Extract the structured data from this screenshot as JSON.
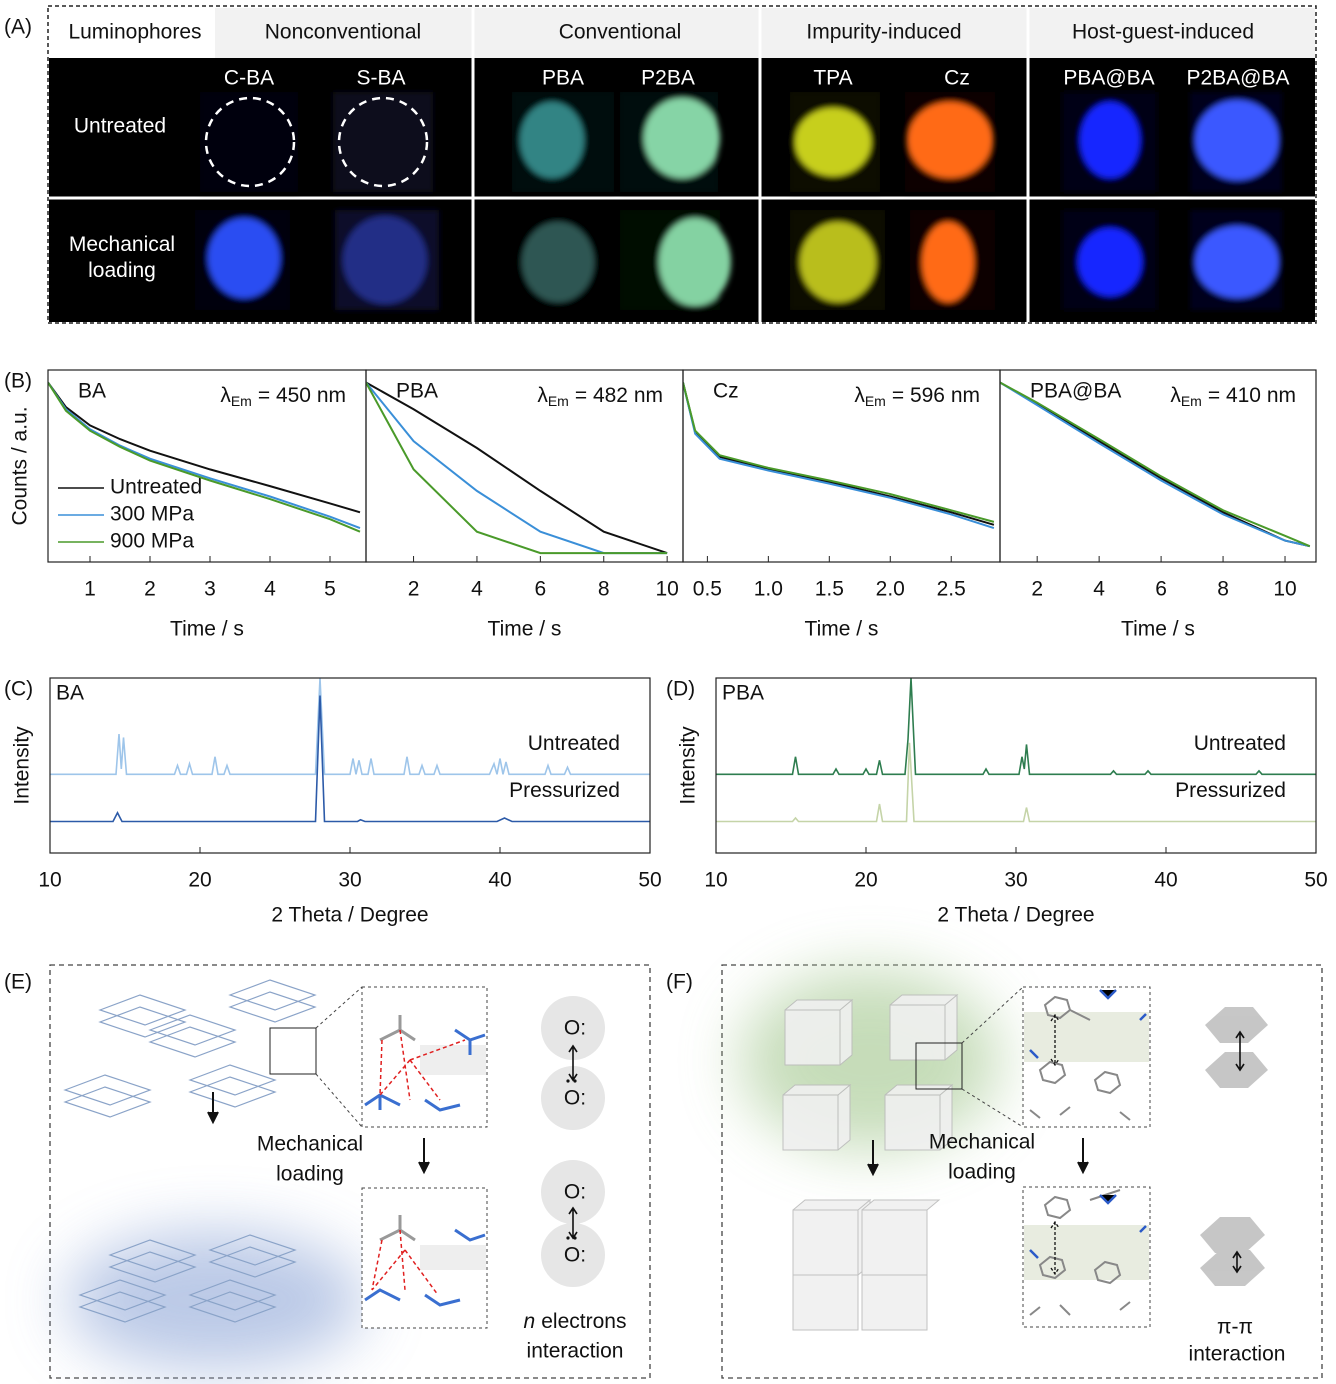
{
  "panel_labels": [
    "(A)",
    "(B)",
    "(C)",
    "(D)",
    "(E)",
    "(F)"
  ],
  "table": {
    "header": [
      "Luminophores",
      "Nonconventional",
      "Conventional",
      "Impurity-induced",
      "Host-guest-induced"
    ],
    "samples": [
      "C-BA",
      "S-BA",
      "PBA",
      "P2BA",
      "TPA",
      "Cz",
      "PBA@BA",
      "P2BA@BA"
    ],
    "rows": [
      "Untreated",
      "Mechanical loading"
    ]
  },
  "chart_data": [
    {
      "type": "line",
      "title": "BA",
      "annotation": {
        "symbol": "λ",
        "subscript": "Em",
        "text": "= 450 nm"
      },
      "xlabel": "Time / s",
      "ylabel": "Counts / a.u.",
      "yscale": "log",
      "legend": "lower left",
      "xlim": [
        0.3,
        5.6
      ],
      "xticks": [
        1,
        2,
        3,
        4,
        5
      ],
      "ylim": [
        3,
        1500
      ],
      "x": [
        0.3,
        0.6,
        1,
        1.5,
        2,
        3,
        4,
        5,
        5.5
      ],
      "series": [
        {
          "name": "Untreated",
          "color": "#111111",
          "values": [
            1000,
            450,
            250,
            160,
            110,
            60,
            35,
            20,
            15
          ]
        },
        {
          "name": "300 MPa",
          "color": "#3a8fd8",
          "values": [
            1000,
            420,
            220,
            130,
            85,
            45,
            25,
            13,
            9
          ]
        },
        {
          "name": "900 MPa",
          "color": "#4a9a2a",
          "values": [
            1000,
            400,
            210,
            125,
            80,
            42,
            23,
            12,
            8
          ]
        }
      ]
    },
    {
      "type": "line",
      "title": "PBA",
      "annotation": {
        "symbol": "λ",
        "subscript": "Em",
        "text": "= 482 nm"
      },
      "xlabel": "Time / s",
      "yscale": "log",
      "xlim": [
        0.5,
        10.5
      ],
      "xticks": [
        2,
        4,
        6,
        8,
        10
      ],
      "ylim": [
        3,
        1500
      ],
      "x": [
        0.5,
        2,
        4,
        6,
        8,
        10
      ],
      "series": [
        {
          "name": "Untreated",
          "color": "#111111",
          "values": [
            1000,
            420,
            120,
            30,
            8,
            4
          ]
        },
        {
          "name": "300 MPa",
          "color": "#3a8fd8",
          "values": [
            1000,
            150,
            30,
            8,
            4,
            4
          ]
        },
        {
          "name": "900 MPa",
          "color": "#4a9a2a",
          "values": [
            1000,
            60,
            8,
            4,
            4,
            4
          ]
        }
      ]
    },
    {
      "type": "line",
      "title": "Cz",
      "annotation": {
        "symbol": "λ",
        "subscript": "Em",
        "text": "= 596 nm"
      },
      "xlabel": "Time / s",
      "yscale": "log",
      "xlim": [
        0.3,
        2.9
      ],
      "xticks": [
        0.5,
        {
          "value": 1,
          "label": "1.0"
        },
        1.5,
        {
          "value": 2,
          "label": "2.0"
        },
        2.5
      ],
      "ylim": [
        3,
        1500
      ],
      "x": [
        0.3,
        0.4,
        0.6,
        1,
        1.5,
        2,
        2.5,
        2.85
      ],
      "series": [
        {
          "name": "Untreated",
          "color": "#111111",
          "values": [
            1000,
            200,
            90,
            60,
            40,
            25,
            15,
            10
          ]
        },
        {
          "name": "300 MPa",
          "color": "#3a8fd8",
          "values": [
            1000,
            190,
            85,
            58,
            38,
            24,
            14,
            9
          ]
        },
        {
          "name": "900 MPa",
          "color": "#4a9a2a",
          "values": [
            1000,
            210,
            95,
            63,
            42,
            27,
            16,
            11
          ]
        }
      ]
    },
    {
      "type": "line",
      "title": "PBA@BA",
      "annotation": {
        "symbol": "λ",
        "subscript": "Em",
        "text": "= 410 nm"
      },
      "xlabel": "Time / s",
      "yscale": "log",
      "xlim": [
        0.8,
        11
      ],
      "xticks": [
        2,
        4,
        6,
        8,
        10
      ],
      "ylim": [
        3,
        1500
      ],
      "x": [
        0.8,
        2,
        4,
        6,
        8,
        10,
        10.8
      ],
      "series": [
        {
          "name": "Untreated",
          "color": "#111111",
          "values": [
            1000,
            500,
            150,
            45,
            15,
            6,
            5
          ]
        },
        {
          "name": "300 MPa",
          "color": "#3a8fd8",
          "values": [
            1000,
            480,
            140,
            42,
            14,
            6,
            5
          ]
        },
        {
          "name": "900 MPa",
          "color": "#4a9a2a",
          "values": [
            1000,
            520,
            160,
            48,
            16,
            7,
            5
          ]
        }
      ]
    },
    {
      "type": "line",
      "title": "BA",
      "xlabel": "2 Theta / Degree",
      "ylabel": "Intensity",
      "legend": "inline",
      "xlim": [
        10,
        50
      ],
      "xticks": [
        10,
        20,
        30,
        40,
        50
      ],
      "ylim": [
        0,
        100
      ],
      "series": [
        {
          "name": "Untreated",
          "color": "#9ec5ea",
          "x": [
            10,
            14.4,
            14.6,
            14.75,
            14.9,
            15.1,
            18.3,
            18.5,
            18.7,
            19.1,
            19.3,
            19.5,
            20.8,
            21,
            21.2,
            21.6,
            21.8,
            22,
            27.7,
            28,
            28.3,
            30,
            30.2,
            30.4,
            30.6,
            30.8,
            31.2,
            31.4,
            31.6,
            33.6,
            33.8,
            34,
            34.6,
            34.8,
            35,
            35.6,
            35.8,
            36,
            39.3,
            39.6,
            39.8,
            40,
            40.2,
            40.4,
            40.6,
            43,
            43.2,
            43.4,
            44.3,
            44.5,
            44.7,
            50
          ],
          "values": [
            45,
            45,
            68,
            48,
            66,
            45,
            45,
            50,
            45,
            45,
            51,
            45,
            45,
            55,
            45,
            45,
            50,
            45,
            45,
            100,
            45,
            45,
            54,
            45,
            53,
            45,
            45,
            54,
            45,
            45,
            55,
            45,
            45,
            50,
            45,
            45,
            50,
            45,
            45,
            51,
            45,
            54,
            45,
            52,
            45,
            45,
            50,
            45,
            45,
            49,
            45,
            45
          ]
        },
        {
          "name": "Pressurized",
          "color": "#2c5aa8",
          "x": [
            10,
            14.2,
            14.5,
            14.8,
            27.7,
            28,
            28.3,
            30.5,
            30.7,
            31,
            39.8,
            40.3,
            40.8,
            50
          ],
          "values": [
            18,
            18,
            23,
            18,
            18,
            90,
            18,
            18,
            19,
            18,
            18,
            20,
            18,
            18
          ]
        }
      ]
    },
    {
      "type": "line",
      "title": "PBA",
      "xlabel": "2 Theta / Degree",
      "ylabel": "Intensity",
      "legend": "inline",
      "xlim": [
        10,
        50
      ],
      "xticks": [
        10,
        20,
        30,
        40,
        50
      ],
      "ylim": [
        0,
        100
      ],
      "series": [
        {
          "name": "Untreated",
          "color": "#2e7d4f",
          "x": [
            10,
            15.1,
            15.3,
            15.5,
            17.8,
            18,
            18.2,
            19.8,
            20,
            20.2,
            20.7,
            20.9,
            21.1,
            22.6,
            22.8,
            23,
            23.3,
            27.8,
            28,
            28.2,
            30.2,
            30.4,
            30.55,
            30.7,
            30.9,
            36.3,
            36.5,
            36.7,
            38.6,
            38.8,
            39,
            46,
            46.2,
            46.4,
            50
          ],
          "values": [
            45,
            45,
            55,
            45,
            45,
            48,
            45,
            45,
            48,
            45,
            45,
            53,
            45,
            45,
            65,
            100,
            45,
            45,
            48,
            45,
            45,
            55,
            48,
            62,
            45,
            45,
            47,
            45,
            45,
            47,
            45,
            45,
            47,
            45,
            45
          ]
        },
        {
          "name": "Pressurized",
          "color": "#c5d4a8",
          "x": [
            10,
            15.1,
            15.3,
            15.5,
            20.7,
            20.9,
            21.1,
            22.7,
            22.9,
            23.2,
            30.5,
            30.7,
            30.9,
            50
          ],
          "values": [
            18,
            18,
            20,
            18,
            18,
            28,
            18,
            18,
            63,
            18,
            18,
            26,
            18,
            18
          ]
        }
      ]
    }
  ],
  "panel_E": {
    "process": [
      "Mechanical",
      "loading"
    ],
    "atoms": [
      "O:",
      "O:",
      "O:",
      "O:"
    ],
    "caption": {
      "symbol": "n",
      "line1": "electrons",
      "line2": "interaction"
    }
  },
  "panel_F": {
    "process": [
      "Mechanical",
      "loading"
    ],
    "caption": [
      "π-π",
      "interaction"
    ]
  }
}
